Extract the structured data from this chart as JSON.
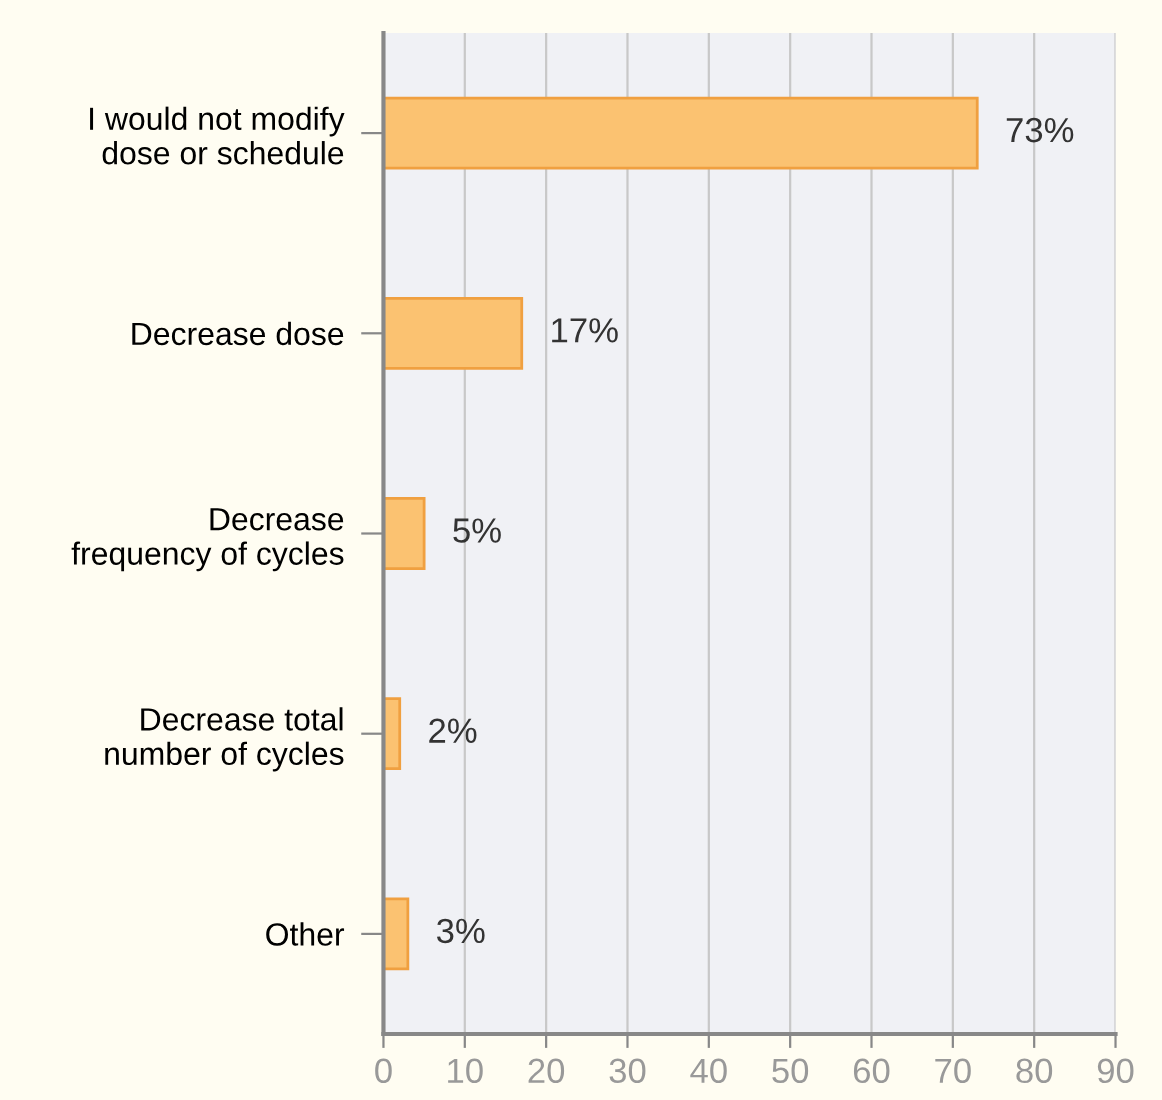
{
  "chart_data": {
    "type": "bar",
    "orientation": "horizontal",
    "categories": [
      "I would not modify\ndose or schedule",
      "Decrease dose",
      "Decrease\nfrequency of cycles",
      "Decrease total\nnumber of cycles",
      "Other"
    ],
    "values": [
      73,
      17,
      5,
      2,
      3
    ],
    "value_labels": [
      "73%",
      "17%",
      "5%",
      "2%",
      "3%"
    ],
    "color": "#fbc271",
    "xlim": [
      0,
      90
    ],
    "xticks": [
      0,
      10,
      20,
      30,
      40,
      50,
      60,
      70,
      80,
      90
    ],
    "grid": "x",
    "legend": false
  }
}
